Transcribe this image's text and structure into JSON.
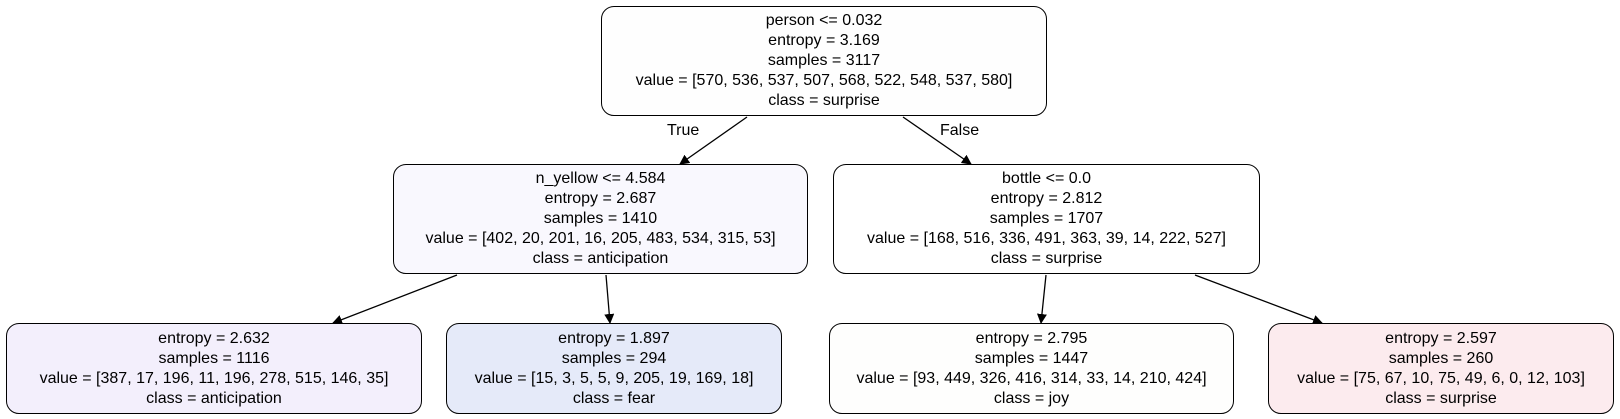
{
  "nodes": [
    {
      "id": "root",
      "lines": [
        "person <= 0.032",
        "entropy = 3.169",
        "samples = 3117",
        "value = [570, 536, 537, 507, 568, 522, 548, 537, 580]",
        "class = surprise"
      ],
      "fill": "#fefefe"
    },
    {
      "id": "left",
      "lines": [
        "n_yellow <= 4.584",
        "entropy = 2.687",
        "samples = 1410",
        "value = [402, 20, 201, 16, 205, 483, 534, 315, 53]",
        "class = anticipation"
      ],
      "fill": "#f9f8fe"
    },
    {
      "id": "right",
      "lines": [
        "bottle <= 0.0",
        "entropy = 2.812",
        "samples = 1707",
        "value = [168, 516, 336, 491, 363, 39, 14, 222, 527]",
        "class = surprise"
      ],
      "fill": "#ffffff"
    },
    {
      "id": "ll",
      "lines": [
        "entropy = 2.632",
        "samples = 1116",
        "value = [387, 17, 196, 11, 196, 278, 515, 146, 35]",
        "class = anticipation"
      ],
      "fill": "#f3effc"
    },
    {
      "id": "lr",
      "lines": [
        "entropy = 1.897",
        "samples = 294",
        "value = [15, 3, 5, 5, 9, 205, 19, 169, 18]",
        "class = fear"
      ],
      "fill": "#e5eaf9"
    },
    {
      "id": "rl",
      "lines": [
        "entropy = 2.795",
        "samples = 1447",
        "value = [93, 449, 326, 416, 314, 33, 14, 210, 424]",
        "class = joy"
      ],
      "fill": "#fefefd"
    },
    {
      "id": "rr",
      "lines": [
        "entropy = 2.597",
        "samples = 260",
        "value = [75, 67, 10, 75, 49, 6, 0, 12, 103]",
        "class = surprise"
      ],
      "fill": "#fcebee"
    }
  ],
  "edges": [
    {
      "from": "root",
      "to": "left",
      "label": "True"
    },
    {
      "from": "root",
      "to": "right",
      "label": "False"
    },
    {
      "from": "left",
      "to": "ll",
      "label": ""
    },
    {
      "from": "left",
      "to": "lr",
      "label": ""
    },
    {
      "from": "right",
      "to": "rl",
      "label": ""
    },
    {
      "from": "right",
      "to": "rr",
      "label": ""
    }
  ]
}
